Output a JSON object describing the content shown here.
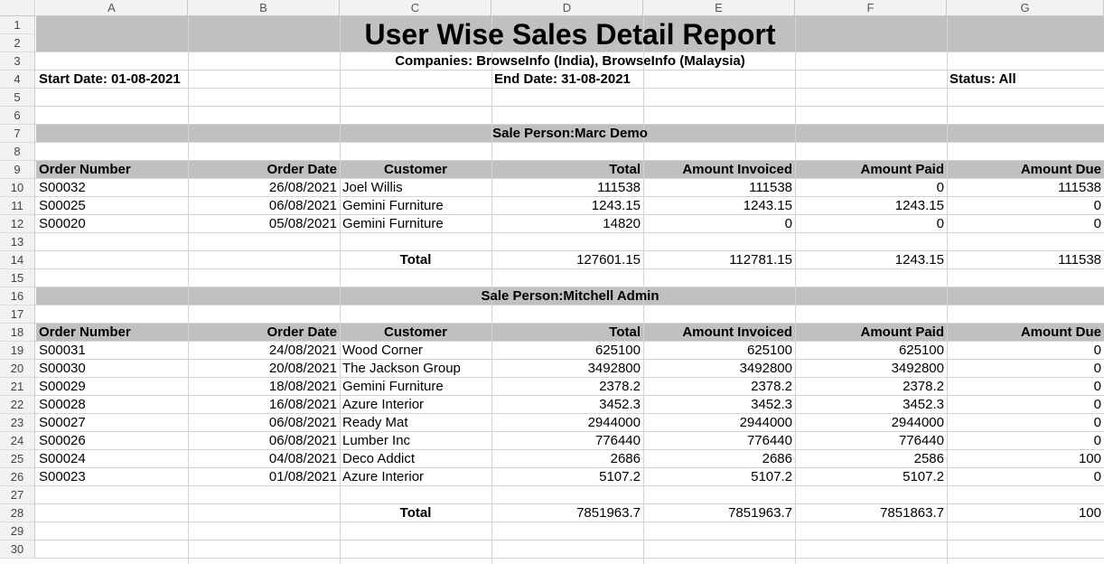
{
  "columns": [
    "A",
    "B",
    "C",
    "D",
    "E",
    "F",
    "G"
  ],
  "rows": [
    "1",
    "2",
    "3",
    "4",
    "5",
    "6",
    "7",
    "8",
    "9",
    "10",
    "11",
    "12",
    "13",
    "14",
    "15",
    "16",
    "17",
    "18",
    "19",
    "20",
    "21",
    "22",
    "23",
    "24",
    "25",
    "26",
    "27",
    "28",
    "29",
    "30"
  ],
  "report": {
    "title": "User Wise Sales Detail Report",
    "companies": "Companies: BrowseInfo (India), BrowseInfo (Malaysia)",
    "start_date": "Start Date: 01-08-2021",
    "end_date": "End Date: 31-08-2021",
    "status": "Status: All"
  },
  "headers": [
    "Order Number",
    "Order Date",
    "Customer",
    "Total",
    "Amount Invoiced",
    "Amount Paid",
    "Amount Due"
  ],
  "sections": [
    {
      "salesperson": "Sale Person:Marc Demo",
      "orders": [
        [
          "S00032",
          "26/08/2021",
          "Joel Willis",
          "111538",
          "111538",
          "0",
          "111538"
        ],
        [
          "S00025",
          "06/08/2021",
          "Gemini Furniture",
          "1243.15",
          "1243.15",
          "1243.15",
          "0"
        ],
        [
          "S00020",
          "05/08/2021",
          "Gemini Furniture",
          "14820",
          "0",
          "0",
          "0"
        ]
      ],
      "total_label": "Total",
      "totals": [
        "127601.15",
        "112781.15",
        "1243.15",
        "111538"
      ]
    },
    {
      "salesperson": "Sale Person:Mitchell Admin",
      "orders": [
        [
          "S00031",
          "24/08/2021",
          "Wood Corner",
          "625100",
          "625100",
          "625100",
          "0"
        ],
        [
          "S00030",
          "20/08/2021",
          "The Jackson Group",
          "3492800",
          "3492800",
          "3492800",
          "0"
        ],
        [
          "S00029",
          "18/08/2021",
          "Gemini Furniture",
          "2378.2",
          "2378.2",
          "2378.2",
          "0"
        ],
        [
          "S00028",
          "16/08/2021",
          "Azure Interior",
          "3452.3",
          "3452.3",
          "3452.3",
          "0"
        ],
        [
          "S00027",
          "06/08/2021",
          "Ready Mat",
          "2944000",
          "2944000",
          "2944000",
          "0"
        ],
        [
          "S00026",
          "06/08/2021",
          "Lumber Inc",
          "776440",
          "776440",
          "776440",
          "0"
        ],
        [
          "S00024",
          "04/08/2021",
          "Deco Addict",
          "2686",
          "2686",
          "2586",
          "100"
        ],
        [
          "S00023",
          "01/08/2021",
          "Azure Interior",
          "5107.2",
          "5107.2",
          "5107.2",
          "0"
        ]
      ],
      "total_label": "Total",
      "totals": [
        "7851963.7",
        "7851963.7",
        "7851863.7",
        "100"
      ]
    }
  ],
  "colors": {
    "band": "#c0c0c0",
    "header_bg": "#f2f2f2",
    "grid": "#d4d4d4"
  }
}
